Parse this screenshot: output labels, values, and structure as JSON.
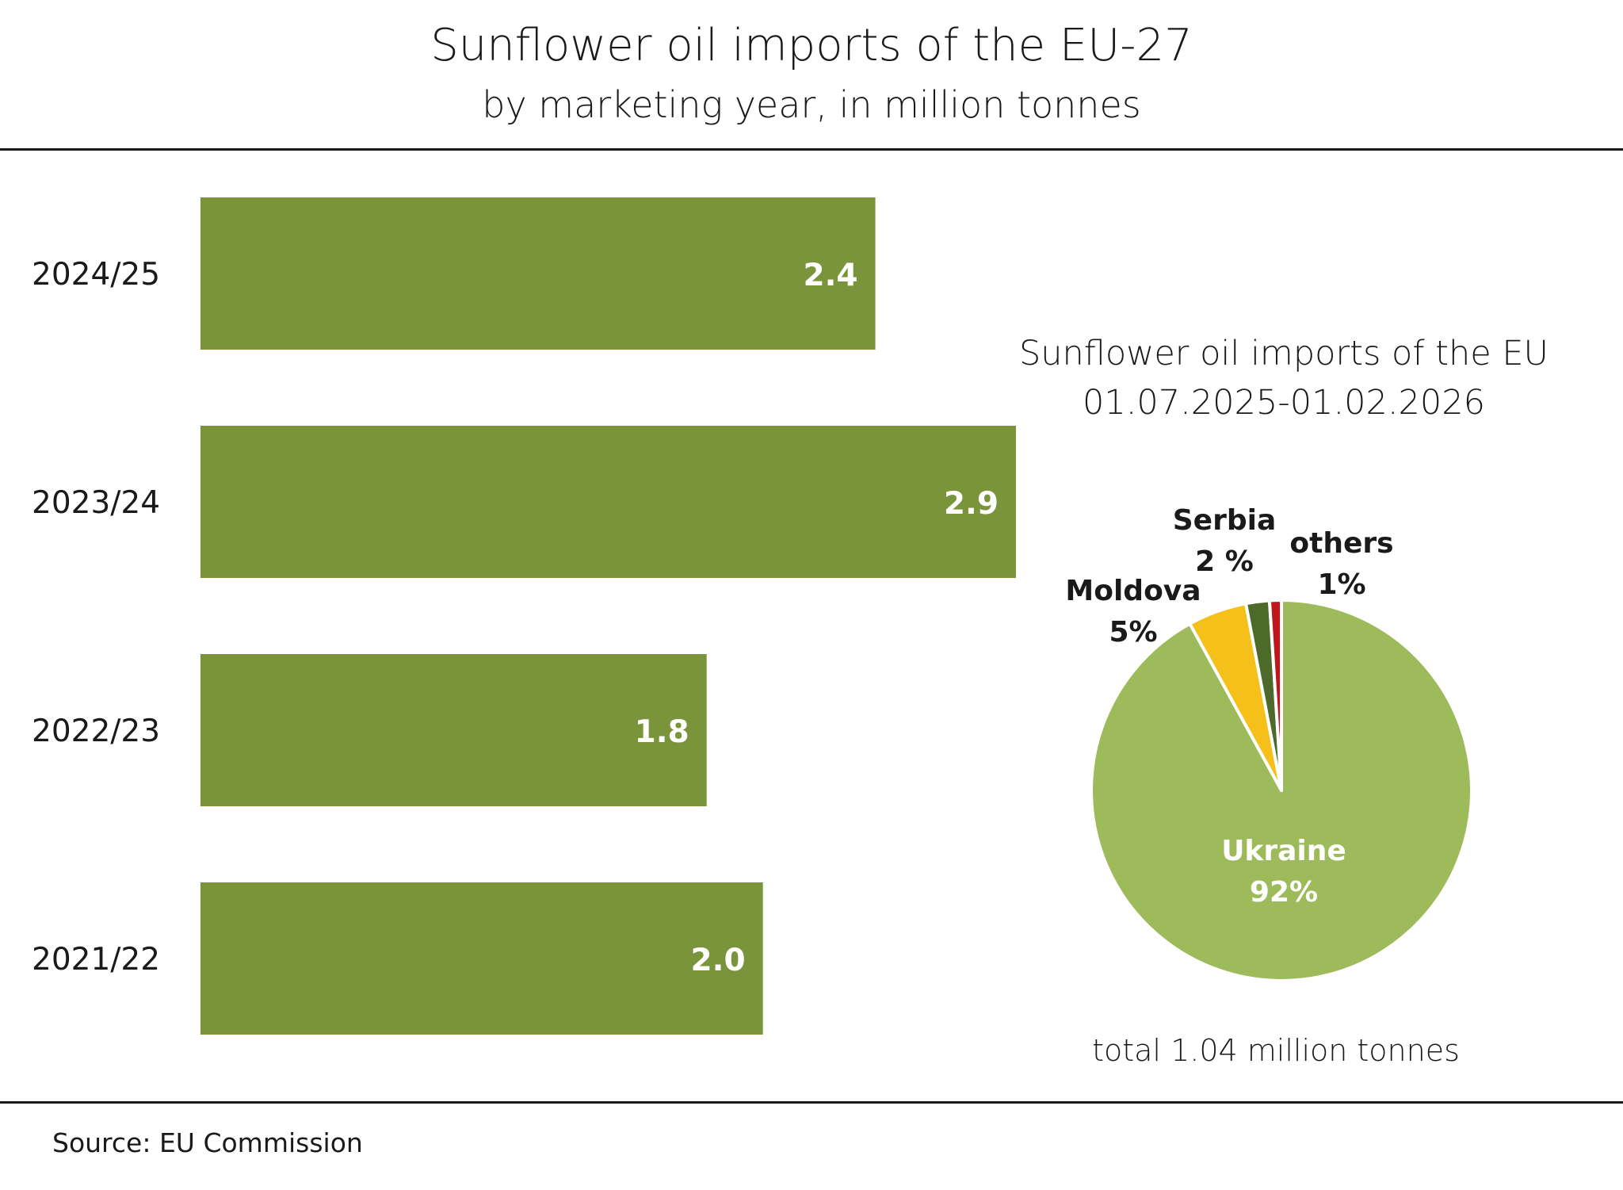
{
  "header": {
    "title": "Sunflower oil imports of the EU-27",
    "subtitle": "by marketing year, in million tonnes"
  },
  "pie_header": {
    "title": "Sunflower oil imports of the EU",
    "period": "01.07.2025-01.02.2026"
  },
  "pie_note": "total 1.04 million tonnes",
  "footer": {
    "source": "Source:  EU Commission"
  },
  "colors": {
    "bar": "#7a943c",
    "ukraine": "#9dbb5a",
    "moldova": "#f5c01a",
    "serbia": "#4e6a2a",
    "others": "#c0161b"
  },
  "chart_data": [
    {
      "type": "bar",
      "orientation": "horizontal",
      "title": "Sunflower oil imports of the EU-27",
      "subtitle": "by marketing year, in million tonnes",
      "categories": [
        "2024/25",
        "2023/24",
        "2022/23",
        "2021/22"
      ],
      "values": [
        2.4,
        2.9,
        1.8,
        2.0
      ],
      "value_labels": [
        "2.4",
        "2.9",
        "1.8",
        "2.0"
      ],
      "xlim": [
        0,
        2.9
      ]
    },
    {
      "type": "pie",
      "title": "Sunflower oil imports of the EU",
      "subtitle": "01.07.2025-01.02.2026",
      "slices": [
        {
          "name": "Ukraine",
          "label": "92%",
          "value": 92,
          "color": "#9dbb5a"
        },
        {
          "name": "Moldova",
          "label": "5%",
          "value": 5,
          "color": "#f5c01a"
        },
        {
          "name": "Serbia",
          "label": "2 %",
          "value": 2,
          "color": "#4e6a2a"
        },
        {
          "name": "others",
          "label": "1%",
          "value": 1,
          "color": "#c0161b"
        }
      ],
      "note": "total 1.04 million tonnes"
    }
  ]
}
